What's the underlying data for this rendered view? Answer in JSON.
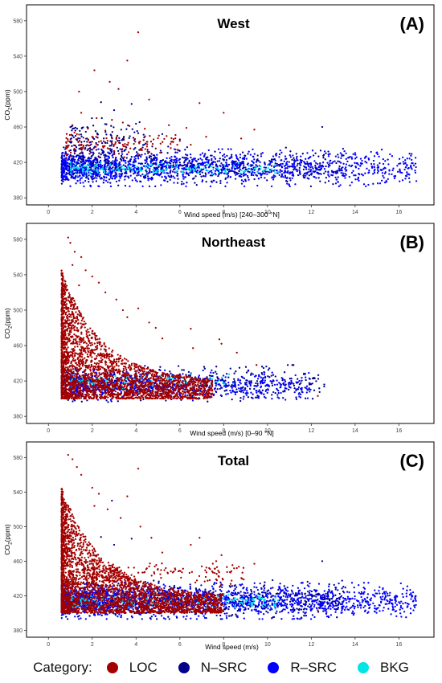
{
  "categories": [
    {
      "key": "LOC",
      "label": "LOC",
      "color": "#a30000"
    },
    {
      "key": "NSRC",
      "label": "N–SRC",
      "color": "#00008b"
    },
    {
      "key": "RSRC",
      "label": "R–SRC",
      "color": "#0000ff"
    },
    {
      "key": "BKG",
      "label": "BKG",
      "color": "#00e5e5"
    }
  ],
  "legend": {
    "title": "Category:"
  },
  "chart_data": [
    {
      "type": "scatter",
      "title": "West",
      "panel_label": "(A)",
      "xlabel": "Wind speed (m/s) [240–300 °N]",
      "ylabel_main": "CO",
      "ylabel_sub": "2",
      "ylabel_rest": "(ppm)",
      "xlim": [
        -1,
        17.6
      ],
      "ylim": [
        372,
        598
      ],
      "xticks": [
        0,
        2,
        4,
        6,
        8,
        10,
        12,
        14,
        16
      ],
      "yticks": [
        380,
        420,
        460,
        500,
        540,
        580
      ],
      "grid": false,
      "series": [
        {
          "category": "LOC",
          "points": [
            [
              4.1,
              567
            ],
            [
              3.6,
              535
            ],
            [
              2.1,
              524
            ],
            [
              1.4,
              500
            ],
            [
              2.8,
              511
            ],
            [
              3.2,
              503
            ],
            [
              4.6,
              491
            ],
            [
              6.9,
              487
            ],
            [
              1.5,
              476
            ],
            [
              2.2,
              470
            ],
            [
              2.9,
              468
            ],
            [
              3.4,
              465
            ],
            [
              1.1,
              462
            ],
            [
              1.8,
              458
            ],
            [
              2.6,
              456
            ],
            [
              3.7,
              461
            ],
            [
              4.4,
              458
            ],
            [
              5.5,
              462
            ],
            [
              6.3,
              459
            ],
            [
              8.0,
              476
            ],
            [
              9.4,
              457
            ],
            [
              1.3,
              452
            ],
            [
              2.0,
              449
            ],
            [
              2.4,
              444
            ],
            [
              3.1,
              447
            ],
            [
              3.9,
              441
            ],
            [
              4.8,
              446
            ],
            [
              5.8,
              451
            ],
            [
              7.2,
              449
            ],
            [
              1.6,
              439
            ],
            [
              2.7,
              436
            ],
            [
              3.5,
              438
            ],
            [
              4.2,
              434
            ],
            [
              5.1,
              431
            ],
            [
              6.5,
              440
            ],
            [
              8.8,
              447
            ]
          ]
        },
        {
          "category": "NSRC",
          "points": [
            [
              2.4,
              488
            ],
            [
              3.0,
              479
            ],
            [
              3.8,
              486
            ],
            [
              12.5,
              460
            ],
            [
              5.2,
              452
            ],
            [
              6.0,
              446
            ],
            [
              2.9,
              444
            ]
          ]
        }
      ],
      "dense_bands": [
        {
          "category": "NSRC",
          "x": [
            0.6,
            13.5
          ],
          "y": [
            393,
            438
          ],
          "n": 700
        },
        {
          "category": "RSRC",
          "x": [
            0.6,
            16.8
          ],
          "y": [
            393,
            435
          ],
          "n": 1300
        },
        {
          "category": "BKG",
          "x": [
            1.0,
            10.5
          ],
          "y": [
            405,
            420
          ],
          "n": 180
        },
        {
          "category": "LOC",
          "x": [
            0.8,
            6.0
          ],
          "y": [
            425,
            455
          ],
          "n": 140
        },
        {
          "category": "NSRC",
          "x": [
            1.0,
            4.5
          ],
          "y": [
            420,
            470
          ],
          "n": 140
        }
      ]
    },
    {
      "type": "scatter",
      "title": "Northeast",
      "panel_label": "(B)",
      "xlabel": "Wind speed (m/s) [0–90 °N]",
      "ylabel_main": "CO",
      "ylabel_sub": "2",
      "ylabel_rest": "(ppm)",
      "xlim": [
        -1,
        17.6
      ],
      "ylim": [
        372,
        598
      ],
      "xticks": [
        0,
        2,
        4,
        6,
        8,
        10,
        12,
        14,
        16
      ],
      "yticks": [
        380,
        420,
        460,
        500,
        540,
        580
      ],
      "grid": false,
      "series": [
        {
          "category": "LOC",
          "points": [
            [
              0.9,
              582
            ],
            [
              1.0,
              576
            ],
            [
              1.2,
              566
            ],
            [
              1.5,
              560
            ],
            [
              1.1,
              551
            ],
            [
              1.7,
              545
            ],
            [
              2.0,
              538
            ],
            [
              2.3,
              531
            ],
            [
              1.4,
              528
            ],
            [
              2.6,
              520
            ],
            [
              3.1,
              512
            ],
            [
              3.4,
              500
            ],
            [
              4.1,
              502
            ],
            [
              3.6,
              492
            ],
            [
              4.6,
              486
            ],
            [
              4.9,
              480
            ],
            [
              5.2,
              468
            ],
            [
              6.5,
              479
            ],
            [
              7.8,
              467
            ],
            [
              7.9,
              462
            ],
            [
              6.6,
              457
            ],
            [
              8.6,
              452
            ],
            [
              9.5,
              438
            ],
            [
              12.3,
              403
            ]
          ]
        }
      ],
      "dense_bands": [
        {
          "category": "NSRC",
          "x": [
            0.6,
            12.6
          ],
          "y": [
            396,
            438
          ],
          "n": 600
        },
        {
          "category": "RSRC",
          "x": [
            1.0,
            12.0
          ],
          "y": [
            398,
            432
          ],
          "n": 700
        },
        {
          "category": "BKG",
          "x": [
            1.0,
            8.5
          ],
          "y": [
            412,
            428
          ],
          "n": 120
        },
        {
          "category": "LOC",
          "shape": "decay",
          "x": [
            0.6,
            7.5
          ],
          "y": [
            400,
            545
          ],
          "decay": 1.6,
          "n": 2600
        }
      ]
    },
    {
      "type": "scatter",
      "title": "Total",
      "panel_label": "(C)",
      "xlabel": "Wind speed (m/s)",
      "ylabel_main": "CO",
      "ylabel_sub": "2",
      "ylabel_rest": "(ppm)",
      "xlim": [
        -1,
        17.6
      ],
      "ylim": [
        372,
        598
      ],
      "xticks": [
        0,
        2,
        4,
        6,
        8,
        10,
        12,
        14,
        16
      ],
      "yticks": [
        380,
        420,
        460,
        500,
        540,
        580
      ],
      "grid": false,
      "series": [
        {
          "category": "LOC",
          "points": [
            [
              0.9,
              583
            ],
            [
              1.1,
              578
            ],
            [
              1.3,
              569
            ],
            [
              4.1,
              567
            ],
            [
              1.5,
              560
            ],
            [
              2.0,
              545
            ],
            [
              2.3,
              538
            ],
            [
              3.6,
              535
            ],
            [
              2.1,
              524
            ],
            [
              2.7,
              520
            ],
            [
              3.3,
              510
            ],
            [
              4.2,
              500
            ],
            [
              4.7,
              487
            ],
            [
              6.9,
              487
            ],
            [
              5.2,
              470
            ],
            [
              6.5,
              479
            ],
            [
              7.9,
              467
            ],
            [
              8.6,
              452
            ],
            [
              9.4,
              457
            ],
            [
              12.3,
              403
            ]
          ]
        },
        {
          "category": "NSRC",
          "points": [
            [
              2.4,
              488
            ],
            [
              3.0,
              479
            ],
            [
              3.8,
              486
            ],
            [
              12.5,
              460
            ],
            [
              2.9,
              530
            ]
          ]
        }
      ],
      "dense_bands": [
        {
          "category": "NSRC",
          "x": [
            0.6,
            13.5
          ],
          "y": [
            393,
            438
          ],
          "n": 900
        },
        {
          "category": "RSRC",
          "x": [
            0.6,
            16.8
          ],
          "y": [
            393,
            435
          ],
          "n": 1700
        },
        {
          "category": "BKG",
          "x": [
            1.0,
            10.5
          ],
          "y": [
            405,
            422
          ],
          "n": 220
        },
        {
          "category": "LOC",
          "shape": "decay",
          "x": [
            0.6,
            8.0
          ],
          "y": [
            400,
            545
          ],
          "decay": 1.6,
          "n": 2800
        },
        {
          "category": "LOC",
          "x": [
            2.0,
            9.0
          ],
          "y": [
            430,
            460
          ],
          "n": 150
        }
      ]
    }
  ]
}
